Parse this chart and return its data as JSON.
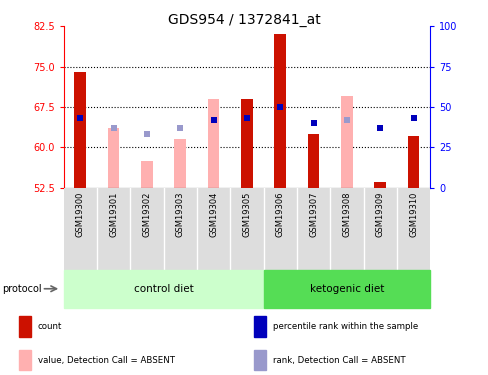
{
  "title": "GDS954 / 1372841_at",
  "samples": [
    "GSM19300",
    "GSM19301",
    "GSM19302",
    "GSM19303",
    "GSM19304",
    "GSM19305",
    "GSM19306",
    "GSM19307",
    "GSM19308",
    "GSM19309",
    "GSM19310"
  ],
  "ylim_left": [
    52.5,
    82.5
  ],
  "yticks_left": [
    52.5,
    60.0,
    67.5,
    75.0,
    82.5
  ],
  "ylim_right": [
    0,
    100
  ],
  "yticks_right": [
    0,
    25,
    50,
    75,
    100
  ],
  "red_bars": [
    74.0,
    null,
    null,
    null,
    null,
    69.0,
    81.0,
    62.5,
    null,
    53.5,
    62.0
  ],
  "pink_bars": [
    null,
    63.5,
    57.5,
    61.5,
    69.0,
    null,
    null,
    null,
    69.5,
    null,
    null
  ],
  "blue_squares": [
    65.5,
    null,
    null,
    null,
    65.0,
    65.5,
    67.5,
    64.5,
    65.0,
    63.5,
    65.5
  ],
  "light_blue_squares": [
    null,
    63.5,
    62.5,
    63.5,
    null,
    null,
    null,
    null,
    65.0,
    null,
    null
  ],
  "ctrl_n": 6,
  "ket_n": 5,
  "red_color": "#CC1100",
  "pink_color": "#FFB0B0",
  "blue_color": "#0000BB",
  "light_blue_color": "#9999CC",
  "ctrl_color": "#CCFFCC",
  "ket_color": "#55DD55",
  "grid_color": "#000000",
  "bg_color": "#DDDDDD",
  "legend_items": [
    {
      "label": "count",
      "color": "#CC1100"
    },
    {
      "label": "percentile rank within the sample",
      "color": "#0000BB"
    },
    {
      "label": "value, Detection Call = ABSENT",
      "color": "#FFB0B0"
    },
    {
      "label": "rank, Detection Call = ABSENT",
      "color": "#9999CC"
    }
  ]
}
